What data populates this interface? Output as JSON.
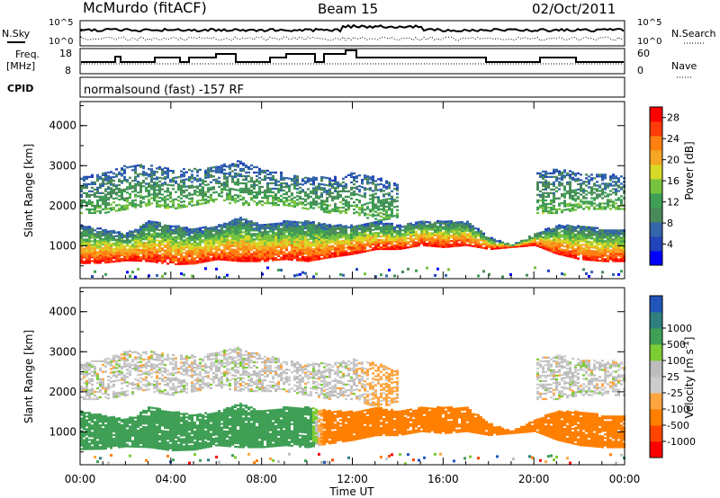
{
  "header": {
    "station": "McMurdo (fitACF)",
    "beam": "Beam 15",
    "date": "02/Oct/2011"
  },
  "top_panels": {
    "nsky_label": "N.Sky",
    "nsearch_label": "N.Search",
    "noise_ticks_left": [
      "10^5",
      "10^0"
    ],
    "noise_ticks_right": [
      "10^5",
      "10^0"
    ],
    "freq_label_1": "Freq.",
    "freq_label_2": "[MHz]",
    "freq_ticks": [
      "18",
      "8"
    ],
    "nave_label": "Nave",
    "nave_ticks": [
      "60",
      "0"
    ],
    "cpid_label": "CPID",
    "cpid_text": "normalsound (fast) -157 RF"
  },
  "x_axis": {
    "label": "Time UT",
    "ticks": [
      "00:00",
      "04:00",
      "08:00",
      "12:00",
      "16:00",
      "20:00",
      "00:00"
    ]
  },
  "colors": {
    "power": [
      "#0000ff",
      "#2244bb",
      "#3366aa",
      "#4a8a5a",
      "#3f9f55",
      "#77c340",
      "#d8d826",
      "#f5a623",
      "#ff7f11",
      "#ff3b0a",
      "#ff0000"
    ],
    "velocity": [
      "#ff0000",
      "#ff4500",
      "#ff7f00",
      "#ffa540",
      "#cccccc",
      "#bdbdbd",
      "#7ccc33",
      "#3f9f55",
      "#2f7f7f",
      "#2255bb"
    ]
  },
  "chart_data": [
    {
      "type": "heatmap",
      "title": "",
      "xlabel": "Time UT",
      "ylabel": "Slant Range [km]",
      "xlim": [
        0,
        24
      ],
      "ylim": [
        180,
        4600
      ],
      "yticks": [
        "1000",
        "2000",
        "3000",
        "4000"
      ],
      "colorbar": {
        "label": "Power [dB]",
        "ticks": [
          "4",
          "8",
          "12",
          "16",
          "20",
          "24",
          "28"
        ],
        "range": [
          0,
          30
        ]
      },
      "series": [
        {
          "band": "lower",
          "x": [
            0,
            1,
            2,
            3,
            4,
            5,
            6,
            7,
            8,
            9,
            10,
            11,
            12,
            13,
            14,
            15,
            16,
            17,
            18,
            19,
            20,
            21,
            22,
            23,
            24
          ],
          "range_lo": [
            550,
            560,
            620,
            600,
            520,
            540,
            650,
            600,
            600,
            650,
            600,
            700,
            780,
            900,
            900,
            1000,
            950,
            1000,
            900,
            950,
            1000,
            780,
            650,
            600,
            600
          ],
          "range_hi": [
            1500,
            1400,
            1300,
            1600,
            1500,
            1400,
            1500,
            1700,
            1500,
            1600,
            1600,
            1500,
            1500,
            1600,
            1500,
            1600,
            1600,
            1600,
            1200,
            1000,
            1300,
            1500,
            1500,
            1400,
            1400
          ]
        },
        {
          "band": "upper",
          "x": [
            0,
            1,
            2,
            3,
            4,
            5,
            6,
            7,
            8,
            9,
            10,
            11,
            12,
            13,
            14,
            15,
            16,
            17,
            18,
            19,
            20,
            21,
            22,
            23,
            24
          ],
          "range_lo": [
            1800,
            1800,
            1900,
            2000,
            1900,
            2000,
            2100,
            2000,
            2000,
            2000,
            1900,
            1800,
            1800,
            1600,
            1700,
            null,
            null,
            null,
            null,
            null,
            1800,
            1800,
            1900,
            1900,
            1900
          ],
          "range_hi": [
            2700,
            2800,
            3000,
            3000,
            2900,
            2900,
            3000,
            3100,
            2900,
            2800,
            2700,
            2700,
            2800,
            2700,
            2500,
            null,
            null,
            null,
            null,
            null,
            2800,
            2900,
            2800,
            2800,
            2700
          ]
        }
      ]
    },
    {
      "type": "heatmap",
      "title": "",
      "xlabel": "Time UT",
      "ylabel": "Slant Range [km]",
      "xlim": [
        0,
        24
      ],
      "ylim": [
        180,
        4600
      ],
      "yticks": [
        "1000",
        "2000",
        "3000",
        "4000"
      ],
      "colorbar": {
        "label": "Velocity [m s",
        "label_sup": "-1",
        "label_end": "]",
        "ticks": [
          "-1000",
          "-500",
          "-100",
          "-25",
          "25",
          "100",
          "500",
          "1000"
        ],
        "range": [
          -1250,
          1250
        ]
      },
      "series": [
        {
          "band": "lower",
          "x": [
            0,
            1,
            2,
            3,
            4,
            5,
            6,
            7,
            8,
            9,
            10,
            11,
            12,
            13,
            14,
            15,
            16,
            17,
            18,
            19,
            20,
            21,
            22,
            23,
            24
          ],
          "velocity": [
            300,
            300,
            300,
            300,
            250,
            200,
            200,
            200,
            200,
            200,
            200,
            -300,
            -400,
            -400,
            -400,
            -400,
            -400,
            -350,
            -300,
            -300,
            -400,
            -400,
            -400,
            -300,
            -300
          ]
        },
        {
          "band": "upper",
          "x": [
            0,
            1,
            2,
            3,
            4,
            5,
            6,
            7,
            8,
            9,
            10,
            11,
            12,
            13,
            14,
            15,
            16,
            17,
            18,
            19,
            20,
            21,
            22,
            23,
            24
          ],
          "velocity": [
            0,
            0,
            0,
            0,
            0,
            0,
            0,
            0,
            0,
            0,
            0,
            0,
            0,
            -50,
            -50,
            null,
            null,
            null,
            null,
            null,
            0,
            0,
            0,
            0,
            0
          ]
        }
      ]
    }
  ]
}
